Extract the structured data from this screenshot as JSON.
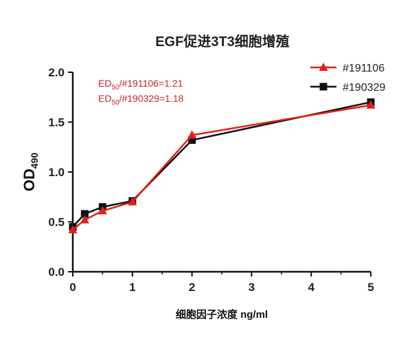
{
  "chart_data": {
    "type": "line",
    "title": "EGF促进3T3细胞增殖",
    "xlabel": "细胞因子浓度 ng/ml",
    "ylabel_main": "OD",
    "ylabel_sub": "490",
    "xlim": [
      0,
      5
    ],
    "ylim": [
      0,
      2.0
    ],
    "xticks": [
      "0",
      "1",
      "2",
      "3",
      "4",
      "5"
    ],
    "yticks": [
      "0.0",
      "0.5",
      "1.0",
      "1.5",
      "2.0"
    ],
    "grid": false,
    "legend_position": "top-right",
    "series": [
      {
        "name": "#191106",
        "color": "#e0201c",
        "marker": "triangle",
        "x": [
          0,
          0.2,
          0.5,
          1,
          2,
          5
        ],
        "y": [
          0.42,
          0.52,
          0.61,
          0.7,
          1.37,
          1.67
        ]
      },
      {
        "name": "#190329",
        "color": "#111111",
        "marker": "square",
        "x": [
          0,
          0.2,
          0.5,
          1,
          2,
          5
        ],
        "y": [
          0.45,
          0.58,
          0.65,
          0.71,
          1.32,
          1.7
        ]
      }
    ],
    "annotations": [
      {
        "prefix": "ED",
        "sub": "50",
        "text": "/#191106=1.21",
        "color": "#c0282c"
      },
      {
        "prefix": "ED",
        "sub": "50",
        "text": "/#190329=1.18",
        "color": "#c0282c"
      }
    ]
  }
}
